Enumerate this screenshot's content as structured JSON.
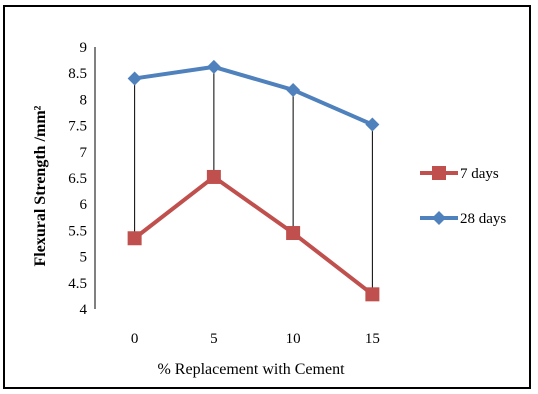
{
  "chart_data": {
    "type": "line",
    "title": "",
    "xlabel": "% Replacement with Cement",
    "ylabel": "Flexural Strength /mm²",
    "categories": [
      "0",
      "5",
      "10",
      "15"
    ],
    "y_ticks": [
      "4",
      "4.5",
      "5",
      "5.5",
      "6",
      "6.5",
      "7",
      "7.5",
      "8",
      "8.5",
      "9"
    ],
    "ylim": [
      4,
      9
    ],
    "grid": false,
    "legend_position": "right",
    "drop_lines": true,
    "series": [
      {
        "name": "7 days",
        "values": [
          5.35,
          6.52,
          5.45,
          4.28
        ],
        "color": "#c0504d",
        "marker": "square"
      },
      {
        "name": "28 days",
        "values": [
          8.4,
          8.62,
          8.18,
          7.52
        ],
        "color": "#4f81bd",
        "marker": "diamond"
      }
    ]
  }
}
